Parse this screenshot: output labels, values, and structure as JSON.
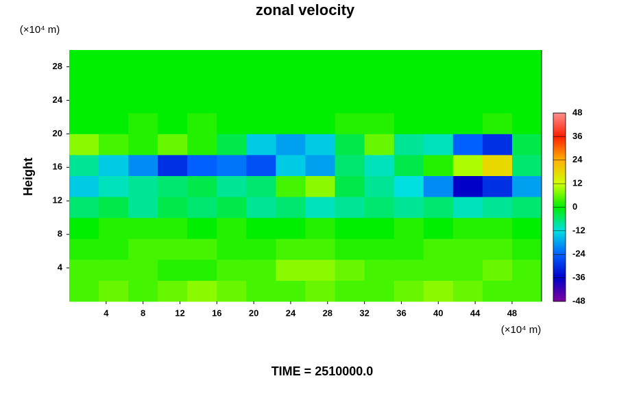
{
  "chart_data": {
    "type": "heatmap",
    "title": "zonal velocity",
    "xlabel": "(×10⁴ m)",
    "ylabel": "Height",
    "yunit": "(×10⁴ m)",
    "footer": "TIME = 2510000.0",
    "xlim": [
      0,
      51.2
    ],
    "ylim": [
      0,
      30
    ],
    "xticks": [
      4,
      8,
      12,
      16,
      20,
      24,
      28,
      32,
      36,
      40,
      44,
      48
    ],
    "yticks": [
      4,
      8,
      12,
      16,
      20,
      24,
      28
    ],
    "x": [
      1.6,
      4.8,
      8,
      11.2,
      14.4,
      17.6,
      20.8,
      24,
      27.2,
      30.4,
      33.6,
      36.8,
      40,
      43.2,
      46.4,
      49.6
    ],
    "y": [
      1.25,
      3.75,
      6.25,
      8.75,
      11.25,
      13.75,
      16.25,
      18.75,
      21.25,
      23.75,
      26.25,
      28.75
    ],
    "z": [
      [
        4,
        6,
        4,
        6,
        8,
        6,
        4,
        4,
        6,
        4,
        4,
        6,
        8,
        6,
        4,
        4
      ],
      [
        4,
        4,
        4,
        2,
        2,
        4,
        4,
        8,
        8,
        6,
        4,
        4,
        4,
        4,
        6,
        4
      ],
      [
        2,
        2,
        4,
        4,
        4,
        2,
        2,
        4,
        4,
        2,
        2,
        2,
        4,
        4,
        4,
        2
      ],
      [
        0,
        2,
        2,
        2,
        0,
        2,
        0,
        0,
        2,
        0,
        0,
        2,
        0,
        2,
        2,
        0
      ],
      [
        -6,
        -4,
        -8,
        -4,
        -6,
        -4,
        -8,
        -6,
        -10,
        -8,
        -6,
        -8,
        -6,
        -10,
        -8,
        -6
      ],
      [
        -14,
        -10,
        -8,
        -6,
        -4,
        -8,
        -6,
        4,
        8,
        -4,
        -8,
        -12,
        -20,
        -36,
        -30,
        -18
      ],
      [
        -8,
        -14,
        -20,
        -30,
        -24,
        -22,
        -26,
        -14,
        -18,
        -6,
        -10,
        -4,
        2,
        10,
        18,
        -6
      ],
      [
        8,
        4,
        2,
        6,
        2,
        -4,
        -14,
        -18,
        -14,
        -4,
        6,
        -8,
        -10,
        -24,
        -30,
        -4
      ],
      [
        0,
        0,
        2,
        0,
        2,
        0,
        0,
        0,
        0,
        2,
        2,
        0,
        0,
        0,
        2,
        0
      ],
      [
        0,
        0,
        0,
        0,
        0,
        0,
        0,
        0,
        0,
        0,
        0,
        0,
        0,
        0,
        0,
        0
      ],
      [
        0,
        0,
        0,
        0,
        0,
        0,
        0,
        0,
        0,
        0,
        0,
        0,
        0,
        0,
        0,
        0
      ],
      [
        0,
        0,
        0,
        0,
        0,
        0,
        0,
        0,
        0,
        0,
        0,
        0,
        0,
        0,
        0,
        0
      ]
    ],
    "clim": [
      -48,
      48
    ],
    "cticks": [
      -48,
      -36,
      -24,
      -12,
      0,
      12,
      24,
      36,
      48
    ],
    "colormap": [
      "#8000a0",
      "#0000c8",
      "#0060ff",
      "#00e0e0",
      "#00ee00",
      "#d0ff00",
      "#ffb000",
      "#ff2000",
      "#ff9090"
    ]
  }
}
